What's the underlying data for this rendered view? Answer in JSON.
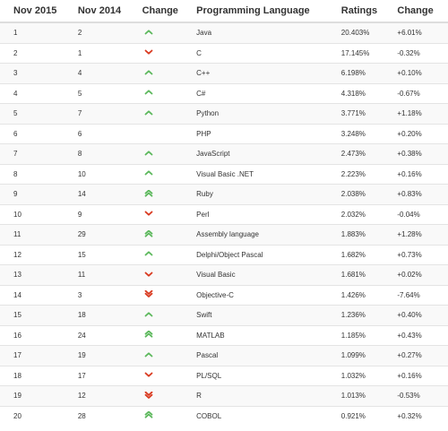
{
  "colors": {
    "up": "#5cb85c",
    "down": "#d9391f"
  },
  "header": {
    "col_nov2015": "Nov 2015",
    "col_nov2014": "Nov 2014",
    "col_change": "Change",
    "col_language": "Programming Language",
    "col_ratings": "Ratings",
    "col_change_pct": "Change"
  },
  "rows": [
    {
      "rank2015": "1",
      "rank2014": "2",
      "trend": "up",
      "language": "Java",
      "rating": "20.403%",
      "change": "+6.01%"
    },
    {
      "rank2015": "2",
      "rank2014": "1",
      "trend": "down",
      "language": "C",
      "rating": "17.145%",
      "change": "-0.32%"
    },
    {
      "rank2015": "3",
      "rank2014": "4",
      "trend": "up",
      "language": "C++",
      "rating": "6.198%",
      "change": "+0.10%"
    },
    {
      "rank2015": "4",
      "rank2014": "5",
      "trend": "up",
      "language": "C#",
      "rating": "4.318%",
      "change": "-0.67%"
    },
    {
      "rank2015": "5",
      "rank2014": "7",
      "trend": "up",
      "language": "Python",
      "rating": "3.771%",
      "change": "+1.18%"
    },
    {
      "rank2015": "6",
      "rank2014": "6",
      "trend": "none",
      "language": "PHP",
      "rating": "3.248%",
      "change": "+0.20%"
    },
    {
      "rank2015": "7",
      "rank2014": "8",
      "trend": "up",
      "language": "JavaScript",
      "rating": "2.473%",
      "change": "+0.38%"
    },
    {
      "rank2015": "8",
      "rank2014": "10",
      "trend": "up",
      "language": "Visual Basic .NET",
      "rating": "2.223%",
      "change": "+0.16%"
    },
    {
      "rank2015": "9",
      "rank2014": "14",
      "trend": "up2",
      "language": "Ruby",
      "rating": "2.038%",
      "change": "+0.83%"
    },
    {
      "rank2015": "10",
      "rank2014": "9",
      "trend": "down",
      "language": "Perl",
      "rating": "2.032%",
      "change": "-0.04%"
    },
    {
      "rank2015": "11",
      "rank2014": "29",
      "trend": "up2",
      "language": "Assembly language",
      "rating": "1.883%",
      "change": "+1.28%"
    },
    {
      "rank2015": "12",
      "rank2014": "15",
      "trend": "up",
      "language": "Delphi/Object Pascal",
      "rating": "1.682%",
      "change": "+0.73%"
    },
    {
      "rank2015": "13",
      "rank2014": "11",
      "trend": "down",
      "language": "Visual Basic",
      "rating": "1.681%",
      "change": "+0.02%"
    },
    {
      "rank2015": "14",
      "rank2014": "3",
      "trend": "down2",
      "language": "Objective-C",
      "rating": "1.426%",
      "change": "-7.64%"
    },
    {
      "rank2015": "15",
      "rank2014": "18",
      "trend": "up",
      "language": "Swift",
      "rating": "1.236%",
      "change": "+0.40%"
    },
    {
      "rank2015": "16",
      "rank2014": "24",
      "trend": "up2",
      "language": "MATLAB",
      "rating": "1.185%",
      "change": "+0.43%"
    },
    {
      "rank2015": "17",
      "rank2014": "19",
      "trend": "up",
      "language": "Pascal",
      "rating": "1.099%",
      "change": "+0.27%"
    },
    {
      "rank2015": "18",
      "rank2014": "17",
      "trend": "down",
      "language": "PL/SQL",
      "rating": "1.032%",
      "change": "+0.16%"
    },
    {
      "rank2015": "19",
      "rank2014": "12",
      "trend": "down2",
      "language": "R",
      "rating": "1.013%",
      "change": "-0.53%"
    },
    {
      "rank2015": "20",
      "rank2014": "28",
      "trend": "up2",
      "language": "COBOL",
      "rating": "0.921%",
      "change": "+0.32%"
    }
  ]
}
